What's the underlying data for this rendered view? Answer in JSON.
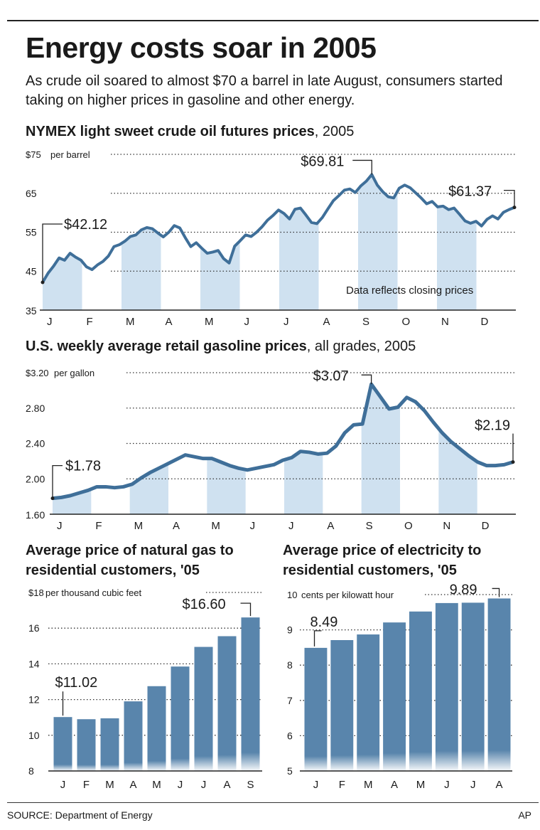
{
  "headline": "Energy costs soar in 2005",
  "intro": "As crude oil soared to almost $70 a barrel in late August, consumers started taking on higher prices in gasoline and other energy.",
  "colors": {
    "line": "#3f6f99",
    "band": "#cfe1f0",
    "bar": "#5985ac",
    "grid": "#333333"
  },
  "footer": {
    "source": "SOURCE: Department of Energy",
    "credit": "AP"
  },
  "chart_data": [
    {
      "id": "oil",
      "type": "line",
      "title_bold": "NYMEX light sweet crude oil futures prices",
      "title_rest": ", 2005",
      "unit_label": "per barrel",
      "ylim": [
        35,
        75
      ],
      "yticks": [
        35,
        45,
        55,
        65,
        75
      ],
      "ytick_labels": [
        "35",
        "45",
        "55",
        "65",
        "$75"
      ],
      "months": [
        "J",
        "F",
        "M",
        "A",
        "M",
        "J",
        "J",
        "A",
        "S",
        "O",
        "N",
        "D"
      ],
      "shaded_months": [
        0,
        2,
        4,
        6,
        8,
        10
      ],
      "note": "Data reflects closing prices",
      "grid": true,
      "series": [
        {
          "values": [
            42.12,
            44.5,
            46.3,
            48.4,
            47.8,
            49.6,
            48.6,
            47.8,
            46.1,
            45.4,
            46.6,
            47.5,
            48.9,
            51.3,
            51.8,
            52.7,
            53.9,
            54.3,
            55.6,
            56.2,
            55.9,
            54.8,
            53.8,
            55.0,
            56.7,
            56.1,
            53.6,
            51.3,
            52.3,
            50.9,
            49.6,
            49.9,
            50.3,
            48.2,
            47.1,
            51.4,
            52.8,
            54.3,
            53.9,
            55.0,
            56.4,
            58.1,
            59.3,
            60.7,
            59.8,
            58.4,
            60.9,
            61.2,
            59.4,
            57.5,
            57.2,
            58.8,
            61.0,
            63.1,
            64.4,
            65.8,
            66.1,
            65.2,
            66.9,
            68.1,
            69.81,
            67.1,
            65.4,
            64.1,
            63.8,
            66.3,
            67.1,
            66.4,
            65.1,
            63.8,
            62.3,
            62.9,
            61.5,
            61.7,
            60.8,
            61.2,
            59.6,
            57.9,
            57.3,
            57.8,
            56.6,
            58.3,
            59.2,
            58.4,
            60.1,
            60.8,
            61.37
          ]
        }
      ],
      "annotations": [
        {
          "label": "$42.12",
          "value": 42.12
        },
        {
          "label": "$69.81",
          "value": 69.81
        },
        {
          "label": "$61.37",
          "value": 61.37
        }
      ]
    },
    {
      "id": "gas",
      "type": "line",
      "title_bold": "U.S. weekly average retail gasoline prices",
      "title_rest": ", all grades, 2005",
      "unit_label": "per gallon",
      "ylim": [
        1.6,
        3.2
      ],
      "yticks": [
        1.6,
        2.0,
        2.4,
        2.8,
        3.2
      ],
      "ytick_labels": [
        "1.60",
        "2.00",
        "2.40",
        "2.80",
        "$3.20"
      ],
      "months": [
        "J",
        "F",
        "M",
        "A",
        "M",
        "J",
        "J",
        "A",
        "S",
        "O",
        "N",
        "D"
      ],
      "shaded_months": [
        0,
        2,
        4,
        6,
        8,
        10
      ],
      "grid": true,
      "series": [
        {
          "values": [
            1.78,
            1.79,
            1.81,
            1.84,
            1.87,
            1.91,
            1.91,
            1.9,
            1.91,
            1.94,
            2.01,
            2.07,
            2.12,
            2.17,
            2.22,
            2.27,
            2.25,
            2.23,
            2.23,
            2.19,
            2.15,
            2.12,
            2.1,
            2.12,
            2.14,
            2.16,
            2.21,
            2.24,
            2.31,
            2.3,
            2.28,
            2.29,
            2.37,
            2.52,
            2.61,
            2.62,
            3.07,
            2.93,
            2.79,
            2.81,
            2.92,
            2.87,
            2.77,
            2.64,
            2.52,
            2.42,
            2.34,
            2.26,
            2.19,
            2.15,
            2.15,
            2.16,
            2.19
          ]
        }
      ],
      "annotations": [
        {
          "label": "$1.78",
          "value": 1.78
        },
        {
          "label": "$3.07",
          "value": 3.07
        },
        {
          "label": "$2.19",
          "value": 2.19
        }
      ]
    },
    {
      "id": "natgas",
      "type": "bar",
      "title": "Average price of natural gas to residential customers, '05",
      "unit_label": "per thousand cubic feet",
      "ylim": [
        8,
        18
      ],
      "yticks": [
        8,
        10,
        12,
        14,
        16,
        18
      ],
      "ytick_labels": [
        "8",
        "10",
        "12",
        "14",
        "16",
        "$18"
      ],
      "categories": [
        "J",
        "F",
        "M",
        "A",
        "M",
        "J",
        "J",
        "A",
        "S"
      ],
      "values": [
        11.02,
        10.9,
        10.95,
        11.9,
        12.75,
        13.85,
        14.95,
        15.55,
        16.6
      ],
      "grid": true,
      "annotations": [
        {
          "label": "$11.02",
          "index": 0
        },
        {
          "label": "$16.60",
          "index": 8
        }
      ]
    },
    {
      "id": "elec",
      "type": "bar",
      "title": "Average price of electricity to residential customers, '05",
      "unit_label": "cents per kilowatt hour",
      "ylim": [
        5,
        10
      ],
      "yticks": [
        5,
        6,
        7,
        8,
        9,
        10
      ],
      "ytick_labels": [
        "5",
        "6",
        "7",
        "8",
        "9",
        "10"
      ],
      "categories": [
        "J",
        "F",
        "M",
        "A",
        "M",
        "J",
        "J",
        "A"
      ],
      "values": [
        8.49,
        8.71,
        8.87,
        9.21,
        9.52,
        9.76,
        9.77,
        9.89
      ],
      "grid": true,
      "annotations": [
        {
          "label": "8.49",
          "index": 0
        },
        {
          "label": "9.89",
          "index": 7
        }
      ]
    }
  ]
}
